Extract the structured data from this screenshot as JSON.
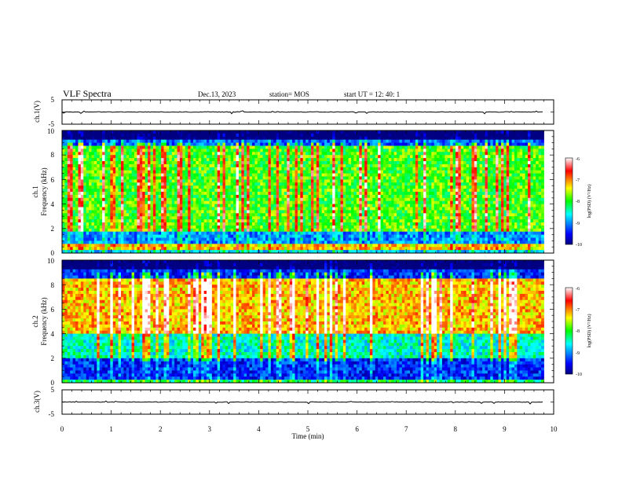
{
  "header": {
    "title": "VLF Spectra",
    "date": "Dec.13, 2023",
    "station": "station= MOS",
    "start": "start  UT =  12: 40: 1"
  },
  "chart_data": [
    {
      "id": "ch1_waveform",
      "type": "line",
      "ylabel": "ch.1(V)",
      "ylim": [
        -5,
        5
      ],
      "yticks": [
        "5",
        "-5"
      ],
      "xlim": [
        0,
        10
      ],
      "baseline": 0,
      "note_values": "near-flat trace around 0 V with small spikes"
    },
    {
      "id": "ch1_spectrogram",
      "type": "heatmap",
      "ylabel_line1": "ch.1",
      "ylabel_line2": "Frequency (kHz)",
      "ylim": [
        0,
        10
      ],
      "yticks": [
        "0",
        "2",
        "4",
        "6",
        "8",
        "10"
      ],
      "xlim": [
        0,
        10
      ],
      "data_end_min": 9.8,
      "colorbar": {
        "label": "log(PSD) (V²/Hz)",
        "range": [
          -10,
          -6
        ],
        "ticks": [
          "-6",
          "-7",
          "-8",
          "-9",
          "-10"
        ]
      },
      "description_levels": {
        "0-0.3 kHz": -8.5,
        "0.3-0.8 kHz": -7.2,
        "0.8-1.8 kHz": -9.0,
        "1.8-9 kHz": -7.8,
        "9-10 kHz": -10
      }
    },
    {
      "id": "ch2_spectrogram",
      "type": "heatmap",
      "ylabel_line1": "ch.2",
      "ylabel_line2": "Frequency (kHz)",
      "ylim": [
        0,
        10
      ],
      "yticks": [
        "0",
        "2",
        "4",
        "6",
        "8",
        "10"
      ],
      "xlim": [
        0,
        10
      ],
      "data_end_min": 9.8,
      "colorbar": {
        "label": "log(PSD) (V²/Hz)",
        "range": [
          -10,
          -6
        ],
        "ticks": [
          "-6",
          "-7",
          "-8",
          "-9",
          "-10"
        ]
      },
      "description_levels": {
        "0-0.3 kHz": -8.0,
        "0.3-2 kHz": -9.3,
        "2-4 kHz": -8.6,
        "4-8.5 kHz": -7.3,
        "8.5-10 kHz": -9.6
      }
    },
    {
      "id": "ch3_waveform",
      "type": "line",
      "ylabel": "ch.3(V)",
      "ylim": [
        -5,
        5
      ],
      "yticks": [
        "5",
        "-5"
      ],
      "xlim": [
        0,
        10
      ],
      "baseline": 0,
      "xlabel": "Time (min)",
      "xticks": [
        "0",
        "1",
        "2",
        "3",
        "4",
        "5",
        "6",
        "7",
        "8",
        "9",
        "10"
      ]
    }
  ]
}
